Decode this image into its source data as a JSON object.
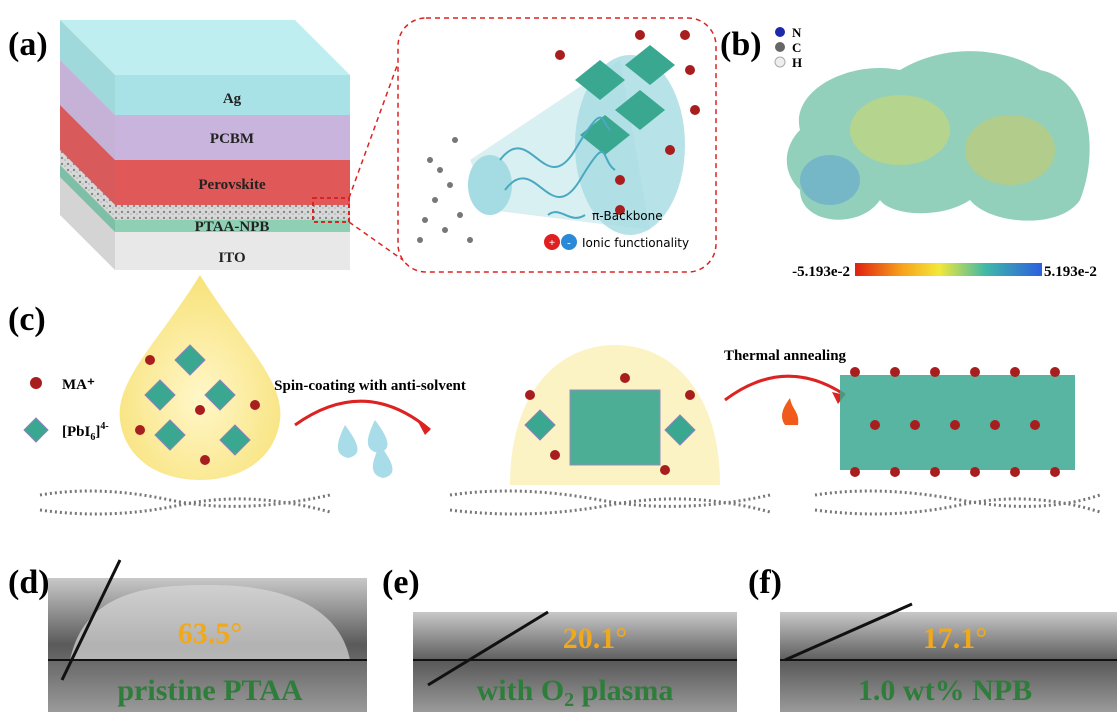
{
  "panel_a": {
    "label": "(a)",
    "layers": [
      "Ag",
      "PCBM",
      "Perovskite",
      "PTAA-NPB",
      "ITO"
    ],
    "legend": [
      "π-Backbone",
      "Ionic functionality"
    ],
    "ion_signs": [
      "+",
      "-"
    ]
  },
  "panel_b": {
    "label": "(b)",
    "atoms": [
      "N",
      "C",
      "H"
    ],
    "colorbar_min": "-5.193e-2",
    "colorbar_max": "5.193e-2"
  },
  "panel_c": {
    "label": "(c)",
    "legend_ma": "MA⁺",
    "legend_pbi": [
      "[PbI",
      "6",
      "]",
      "4-"
    ],
    "step1": "Spin-coating with anti-solvent",
    "step2": "Thermal annealing"
  },
  "panel_d": {
    "label": "(d)",
    "angle": "63.5°",
    "caption": "pristine PTAA"
  },
  "panel_e": {
    "label": "(e)",
    "angle": "20.1°",
    "caption": [
      "with O",
      "2",
      " plasma"
    ]
  },
  "panel_f": {
    "label": "(f)",
    "angle": "17.1°",
    "caption": "1.0 wt% NPB"
  }
}
